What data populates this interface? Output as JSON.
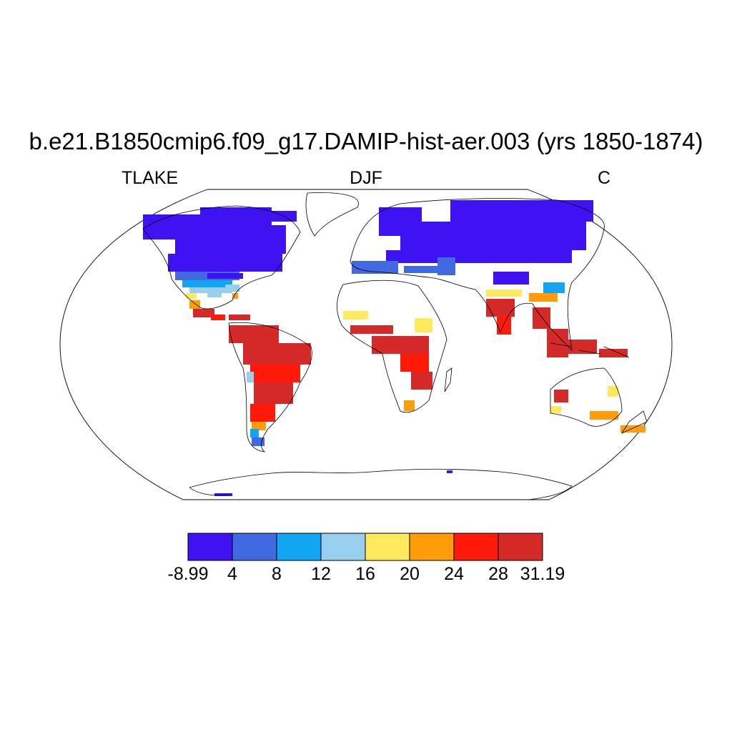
{
  "title": "b.e21.B1850cmip6.f09_g17.DAMIP-hist-aer.003 (yrs 1850-1874)",
  "left_label": "TLAKE",
  "center_label": "DJF",
  "right_label": "C",
  "colorbar": {
    "colors": [
      "#3f12f2",
      "#4169e1",
      "#12a6f2",
      "#99cfee",
      "#ffea5e",
      "#ff9c0a",
      "#ff1a0a",
      "#d42a2a"
    ],
    "labels": [
      "-8.99",
      "4",
      "8",
      "12",
      "16",
      "20",
      "24",
      "28",
      "31.19"
    ]
  }
}
